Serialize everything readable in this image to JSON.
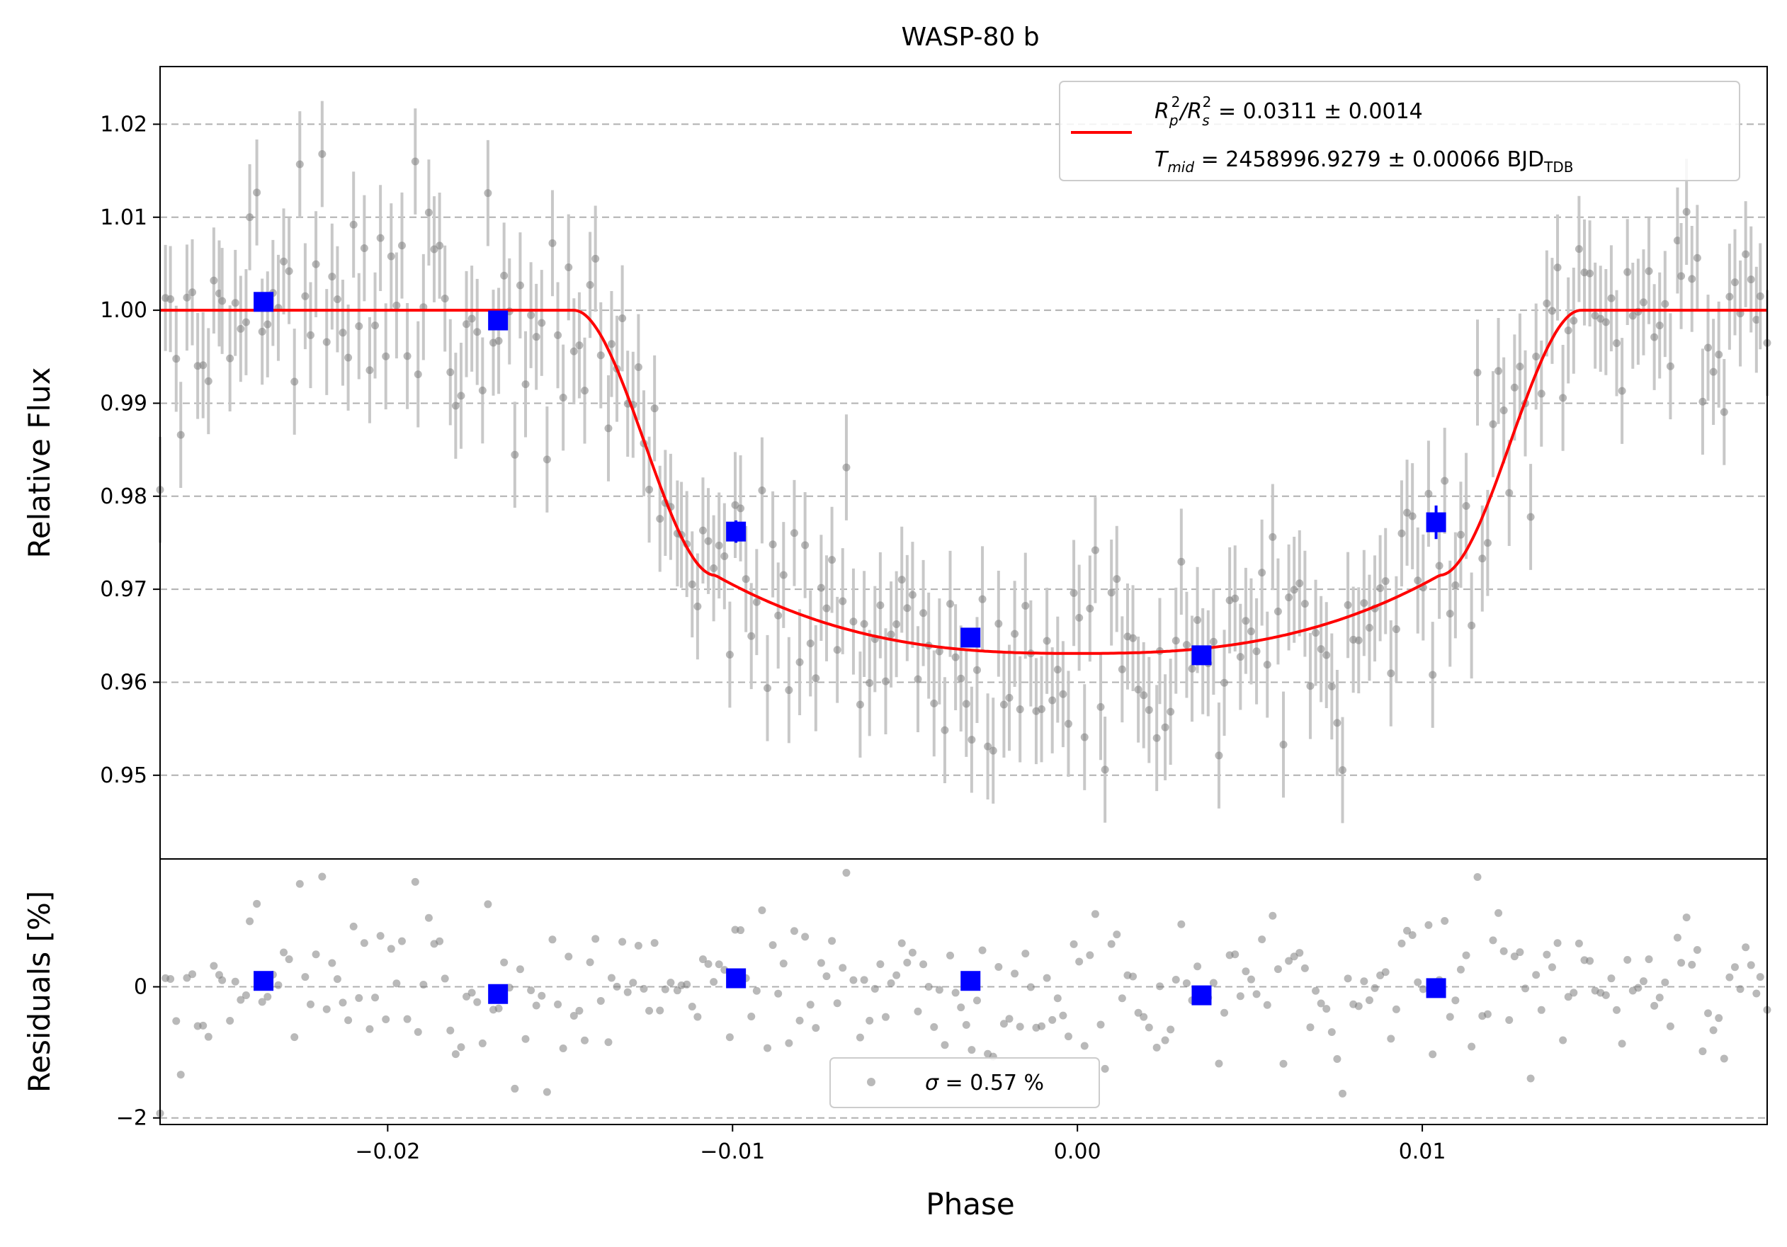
{
  "chart_data": {
    "type": "scatter",
    "title": "WASP-80 b",
    "xlabel": "Phase",
    "x_ticks": [
      "−0.02",
      "−0.01",
      "0.00",
      "0.01"
    ],
    "x_tick_values": [
      -0.02,
      -0.01,
      0.0,
      0.01
    ],
    "xlim": [
      -0.0266,
      0.02
    ],
    "grid": "horizontal dashed",
    "top_panel": {
      "ylabel": "Relative Flux",
      "ylim": [
        0.941,
        1.0262
      ],
      "y_ticks": [
        "0.95",
        "0.96",
        "0.97",
        "0.98",
        "0.99",
        "1.00",
        "1.01",
        "1.02"
      ],
      "y_tick_values": [
        0.95,
        0.96,
        0.97,
        0.98,
        0.99,
        1.0,
        1.01,
        1.02
      ],
      "legend": {
        "position": "top-right",
        "line1": {
          "prefix": "R",
          "sub1": "p",
          "mid": "/R",
          "sub2": "s",
          "sup": "2",
          "value": " = 0.0311 ± 0.0014"
        },
        "line2": {
          "prefix": "T",
          "sub": "mid",
          "value": " = 2458996.9279 ± 0.00066 BJD",
          "unit_sub": "TDB"
        }
      },
      "model": {
        "name": "transit model",
        "color": "#ff0000",
        "depth": 0.0311,
        "baseline": 1.0,
        "ingress_start": -0.0146,
        "ingress_end": -0.0105,
        "egress_start": 0.0105,
        "egress_end": 0.0146,
        "limb_darkened_minimum": 0.9631
      },
      "binned": [
        {
          "x": -0.0236,
          "y": 1.0009,
          "err": 0.001
        },
        {
          "x": -0.0168,
          "y": 0.9989,
          "err": 0.001
        },
        {
          "x": -0.0099,
          "y": 0.9762,
          "err": 0.0012
        },
        {
          "x": -0.0031,
          "y": 0.9648,
          "err": 0.001
        },
        {
          "x": 0.0036,
          "y": 0.9629,
          "err": 0.001
        },
        {
          "x": 0.0104,
          "y": 0.9772,
          "err": 0.0018
        }
      ],
      "raw_points": {
        "count": 300,
        "color": "#808080",
        "typical_error": 0.0057,
        "samples": [
          {
            "x": -0.0266,
            "y": 0.9807
          },
          {
            "x": -0.0263,
            "y": 1.0012
          },
          {
            "x": -0.026,
            "y": 0.9866
          },
          {
            "x": -0.0248,
            "y": 1.001
          },
          {
            "x": -0.024,
            "y": 1.01
          },
          {
            "x": -0.0219,
            "y": 1.0168
          },
          {
            "x": -0.0192,
            "y": 1.016
          },
          {
            "x": -0.0136,
            "y": 0.9873
          },
          {
            "x": -0.0116,
            "y": 0.976
          },
          {
            "x": -0.0067,
            "y": 0.9831
          },
          {
            "x": -0.0063,
            "y": 0.9576
          },
          {
            "x": -0.0026,
            "y": 0.9531
          },
          {
            "x": 0.0008,
            "y": 0.9506
          },
          {
            "x": 0.0023,
            "y": 0.954
          },
          {
            "x": 0.0103,
            "y": 0.9608
          },
          {
            "x": 0.0116,
            "y": 0.9933
          },
          {
            "x": 0.0174,
            "y": 1.0075
          },
          {
            "x": 0.0198,
            "y": 1.0015
          }
        ]
      }
    },
    "bottom_panel": {
      "ylabel": "Residuals [%]",
      "ylim": [
        -2.1,
        1.95
      ],
      "y_ticks": [
        "−2",
        "0"
      ],
      "y_tick_values": [
        -2,
        0
      ],
      "legend": {
        "position": "bottom-center",
        "symbol": "σ",
        "text": " = 0.57 %"
      },
      "binned_residuals": [
        {
          "x": -0.0236,
          "y": 0.09
        },
        {
          "x": -0.0168,
          "y": -0.11
        },
        {
          "x": -0.0099,
          "y": 0.13
        },
        {
          "x": -0.0031,
          "y": 0.09
        },
        {
          "x": 0.0036,
          "y": -0.13
        },
        {
          "x": 0.0104,
          "y": -0.02
        }
      ],
      "sigma_percent": 0.57
    },
    "colors": {
      "model": "#ff0000",
      "binned": "#0000ff",
      "raw": "#808080",
      "errorbar": "#c8c8c8",
      "grid": "#b0b0b0"
    }
  }
}
